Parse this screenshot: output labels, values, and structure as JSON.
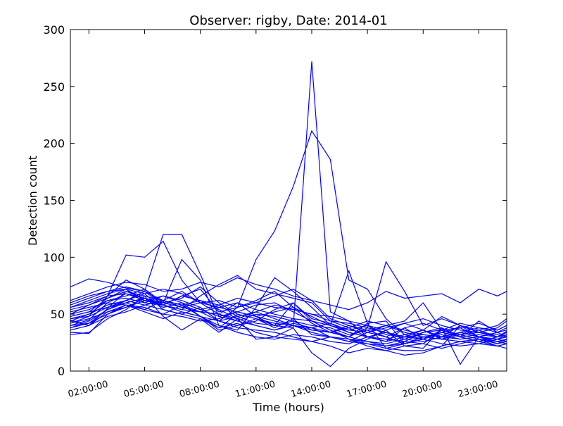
{
  "chart_data": {
    "type": "line",
    "title": "Observer: rigby, Date: 2014-01",
    "xlabel": "Time (hours)",
    "ylabel": "Detection count",
    "x_unit": "hours",
    "xlim": [
      1,
      24.5
    ],
    "ylim": [
      0,
      300
    ],
    "grid": false,
    "legend": "none",
    "line_color": "#0000ff",
    "x_ticks": [
      {
        "value": 2,
        "label": "02:00:00"
      },
      {
        "value": 5,
        "label": "05:00:00"
      },
      {
        "value": 8,
        "label": "08:00:00"
      },
      {
        "value": 11,
        "label": "11:00:00"
      },
      {
        "value": 14,
        "label": "14:00:00"
      },
      {
        "value": 17,
        "label": "17:00:00"
      },
      {
        "value": 20,
        "label": "20:00:00"
      },
      {
        "value": 23,
        "label": "23:00:00"
      }
    ],
    "y_ticks": [
      0,
      50,
      100,
      150,
      200,
      250,
      300
    ],
    "x": [
      1,
      2,
      3,
      4,
      5,
      6,
      7,
      8,
      9,
      10,
      11,
      12,
      13,
      14,
      15,
      16,
      17,
      18,
      19,
      20,
      21,
      22,
      23,
      24,
      24.5
    ],
    "series": [
      {
        "values": [
          42,
          48,
          66,
          80,
          72,
          58,
          54,
          52,
          44,
          56,
          98,
          123,
          162,
          211,
          186,
          80,
          72,
          46,
          32,
          36,
          30,
          40,
          34,
          30,
          35
        ]
      },
      {
        "values": [
          45,
          40,
          55,
          70,
          64,
          56,
          60,
          48,
          38,
          50,
          46,
          40,
          38,
          272,
          52,
          44,
          30,
          26,
          38,
          28,
          36,
          32,
          28,
          26,
          28
        ]
      },
      {
        "values": [
          74,
          81,
          78,
          73,
          70,
          120,
          120,
          85,
          48,
          52,
          48,
          40,
          60,
          44,
          36,
          30,
          38,
          96,
          70,
          40,
          46,
          40,
          36,
          30,
          32
        ]
      },
      {
        "values": [
          56,
          62,
          68,
          72,
          62,
          60,
          98,
          80,
          40,
          36,
          56,
          82,
          70,
          56,
          40,
          88,
          42,
          44,
          24,
          30,
          28,
          34,
          30,
          28,
          30
        ]
      },
      {
        "values": [
          50,
          58,
          66,
          102,
          100,
          114,
          80,
          60,
          50,
          44,
          40,
          36,
          42,
          38,
          30,
          26,
          34,
          40,
          44,
          60,
          36,
          42,
          38,
          34,
          38
        ]
      },
      {
        "values": [
          40,
          45,
          60,
          68,
          64,
          56,
          60,
          54,
          58,
          48,
          42,
          40,
          44,
          36,
          34,
          40,
          36,
          30,
          24,
          28,
          34,
          30,
          44,
          34,
          36
        ]
      },
      {
        "values": [
          38,
          42,
          54,
          62,
          70,
          58,
          54,
          66,
          76,
          84,
          72,
          68,
          64,
          60,
          44,
          38,
          30,
          34,
          28,
          34,
          36,
          38,
          30,
          26,
          28
        ]
      },
      {
        "values": [
          52,
          56,
          60,
          58,
          54,
          62,
          58,
          48,
          36,
          40,
          44,
          54,
          60,
          46,
          42,
          36,
          40,
          32,
          30,
          36,
          28,
          32,
          34,
          30,
          34
        ]
      },
      {
        "values": [
          34,
          33,
          50,
          56,
          64,
          58,
          66,
          72,
          52,
          56,
          62,
          70,
          56,
          42,
          34,
          30,
          26,
          24,
          28,
          26,
          30,
          34,
          30,
          28,
          26
        ]
      },
      {
        "values": [
          48,
          52,
          64,
          72,
          60,
          66,
          62,
          56,
          44,
          40,
          46,
          38,
          46,
          32,
          30,
          28,
          26,
          22,
          24,
          30,
          32,
          28,
          30,
          26,
          24
        ]
      },
      {
        "values": [
          60,
          66,
          70,
          72,
          68,
          54,
          50,
          46,
          38,
          42,
          34,
          30,
          28,
          26,
          30,
          28,
          24,
          22,
          26,
          24,
          36,
          30,
          26,
          22,
          24
        ]
      },
      {
        "values": [
          44,
          50,
          58,
          62,
          58,
          62,
          70,
          60,
          50,
          60,
          48,
          44,
          40,
          38,
          42,
          34,
          30,
          28,
          32,
          28,
          34,
          30,
          32,
          30,
          32
        ]
      },
      {
        "values": [
          32,
          34,
          46,
          54,
          66,
          48,
          36,
          46,
          34,
          46,
          28,
          30,
          38,
          16,
          4,
          20,
          28,
          36,
          22,
          20,
          38,
          6,
          30,
          28,
          30
        ]
      },
      {
        "values": [
          46,
          50,
          62,
          66,
          72,
          60,
          64,
          74,
          60,
          50,
          46,
          42,
          40,
          38,
          34,
          30,
          42,
          20,
          18,
          18,
          22,
          40,
          30,
          24,
          26
        ]
      },
      {
        "values": [
          58,
          64,
          70,
          74,
          70,
          62,
          56,
          60,
          62,
          56,
          60,
          66,
          72,
          62,
          46,
          40,
          34,
          38,
          42,
          36,
          48,
          40,
          34,
          32,
          30
        ]
      },
      {
        "values": [
          42,
          46,
          52,
          56,
          62,
          66,
          60,
          54,
          48,
          44,
          50,
          48,
          44,
          40,
          38,
          32,
          36,
          40,
          34,
          30,
          28,
          26,
          24,
          22,
          24
        ]
      },
      {
        "values": [
          36,
          40,
          48,
          52,
          58,
          54,
          50,
          56,
          44,
          38,
          36,
          34,
          30,
          26,
          22,
          16,
          20,
          18,
          22,
          24,
          20,
          24,
          28,
          22,
          20
        ]
      },
      {
        "values": [
          50,
          54,
          62,
          64,
          60,
          58,
          66,
          62,
          58,
          64,
          60,
          56,
          54,
          50,
          44,
          42,
          38,
          34,
          30,
          28,
          34,
          38,
          42,
          36,
          40
        ]
      },
      {
        "values": [
          62,
          68,
          74,
          78,
          76,
          70,
          72,
          78,
          74,
          82,
          76,
          72,
          66,
          62,
          58,
          54,
          60,
          70,
          64,
          66,
          68,
          60,
          72,
          66,
          70
        ]
      },
      {
        "values": [
          40,
          42,
          50,
          58,
          52,
          46,
          52,
          48,
          40,
          34,
          30,
          28,
          32,
          30,
          26,
          24,
          30,
          28,
          26,
          34,
          38,
          30,
          26,
          30,
          34
        ]
      },
      {
        "values": [
          54,
          58,
          64,
          70,
          66,
          62,
          58,
          52,
          50,
          46,
          52,
          58,
          54,
          50,
          48,
          44,
          40,
          36,
          42,
          46,
          40,
          36,
          34,
          38,
          44
        ]
      },
      {
        "values": [
          46,
          48,
          56,
          60,
          64,
          60,
          56,
          52,
          56,
          60,
          54,
          50,
          46,
          44,
          40,
          36,
          34,
          30,
          38,
          42,
          36,
          32,
          36,
          40,
          46
        ]
      },
      {
        "values": [
          44,
          40,
          52,
          58,
          56,
          50,
          48,
          44,
          46,
          52,
          58,
          60,
          52,
          44,
          36,
          28,
          22,
          18,
          14,
          16,
          22,
          26,
          28,
          24,
          28
        ]
      },
      {
        "values": [
          48,
          52,
          56,
          62,
          68,
          72,
          68,
          60,
          56,
          52,
          48,
          52,
          56,
          48,
          40,
          34,
          30,
          26,
          30,
          32,
          30,
          28,
          30,
          34,
          30
        ]
      },
      {
        "values": [
          38,
          44,
          54,
          60,
          54,
          50,
          58,
          62,
          54,
          46,
          40,
          36,
          40,
          34,
          30,
          26,
          24,
          20,
          24,
          28,
          24,
          22,
          24,
          28,
          32
        ]
      },
      {
        "values": [
          56,
          60,
          66,
          68,
          62,
          58,
          52,
          48,
          44,
          48,
          52,
          46,
          40,
          36,
          34,
          38,
          44,
          40,
          36,
          32,
          30,
          34,
          38,
          36,
          40
        ]
      }
    ]
  }
}
